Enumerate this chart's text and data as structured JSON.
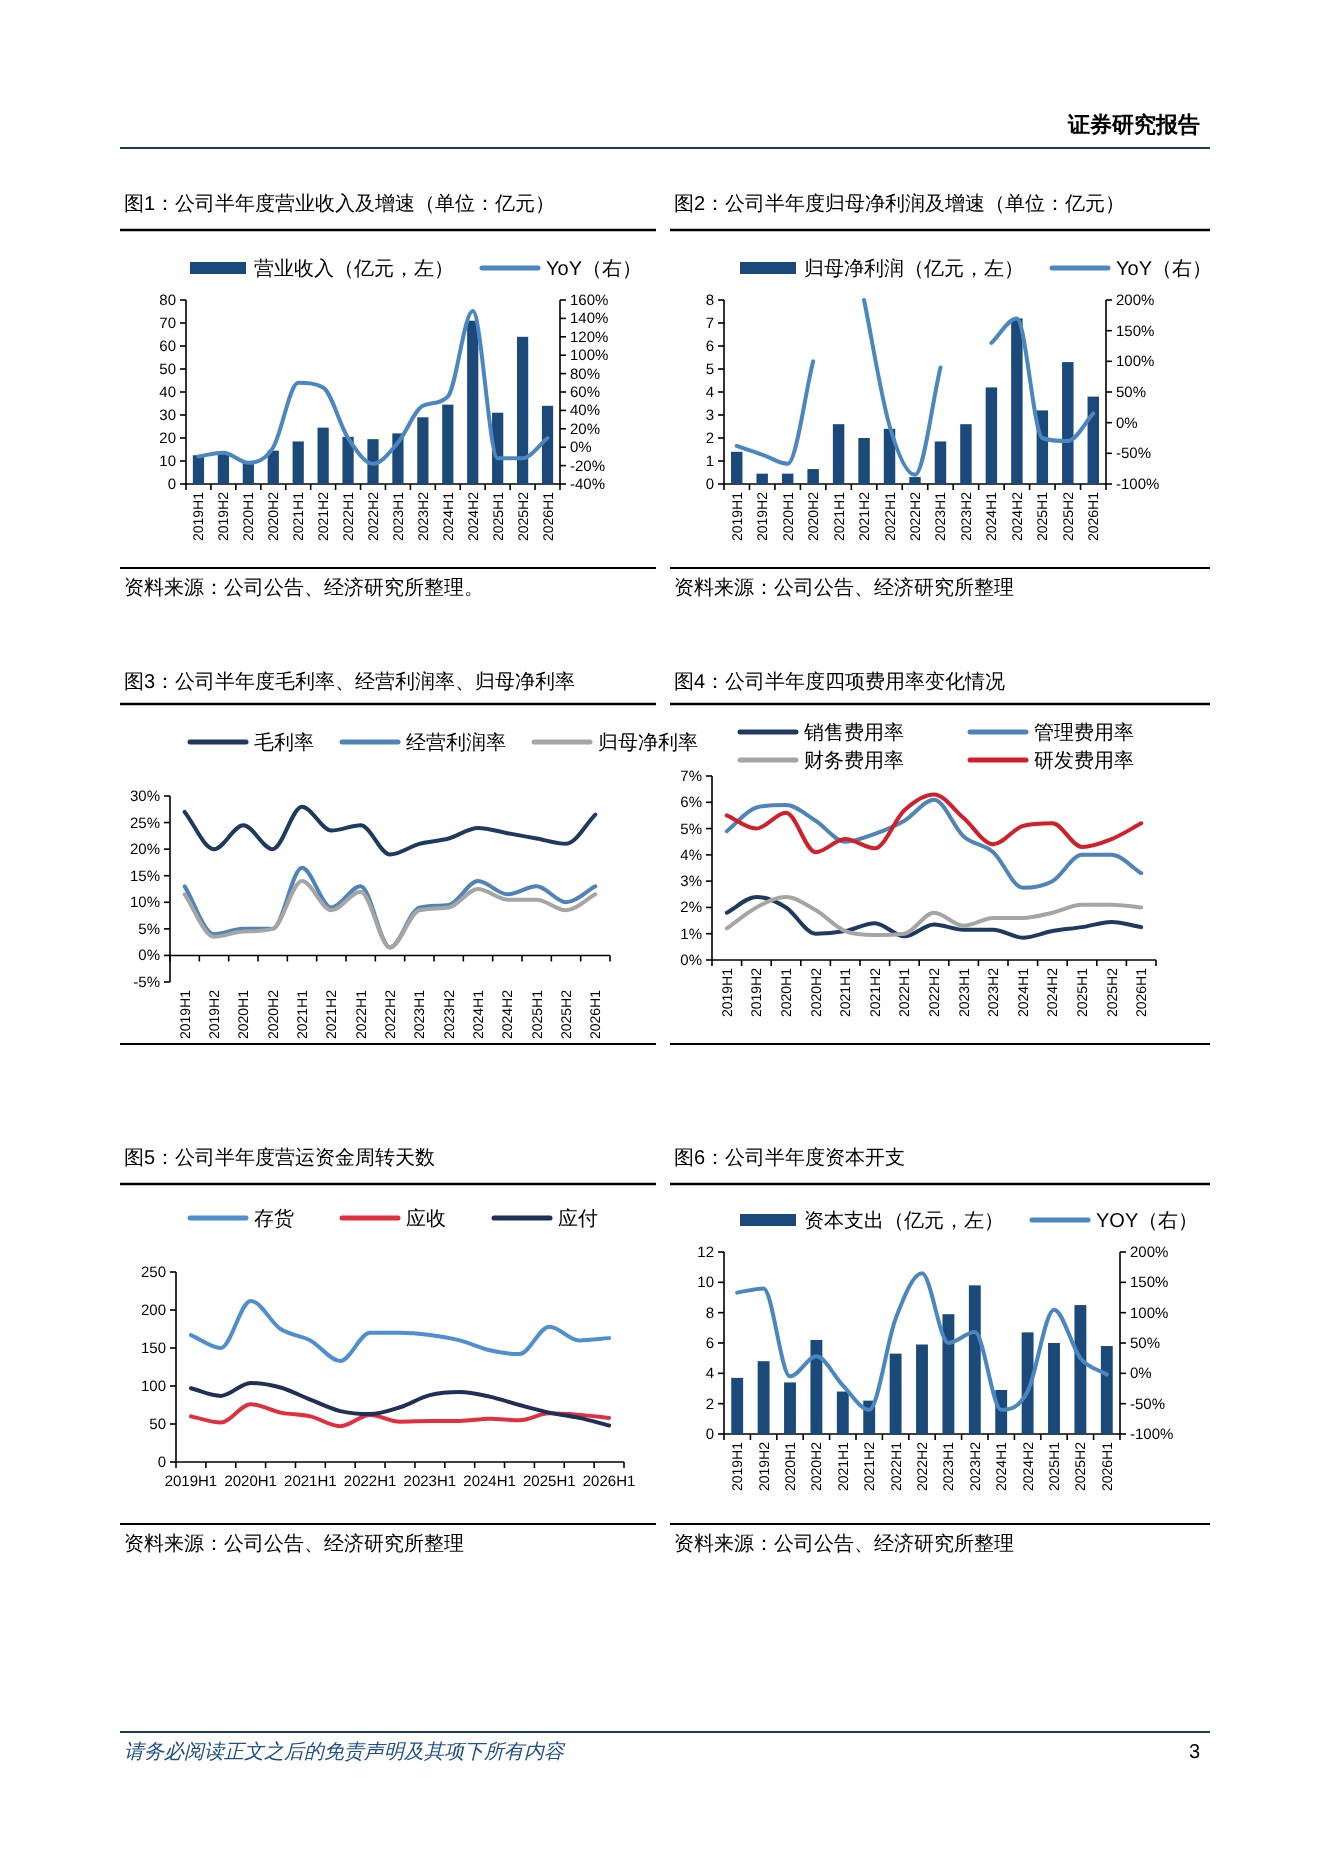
{
  "chart_data": [
    {
      "type": "other",
      "annotations": [
        "证券研究报告"
      ]
    },
    {
      "type": "bar",
      "title": "图1：公司半年度营业收入及增速（单位：亿元）",
      "legend": "top",
      "categories": [
        "2019H1",
        "2019H2",
        "2020H1",
        "2020H2",
        "2021H1",
        "2021H2",
        "2022H1",
        "2022H2",
        "2023H1",
        "2023H2",
        "2024H1",
        "2024H2",
        "2025H1",
        "2025H2",
        "2026H1"
      ],
      "series": [
        {
          "name": "营业收入（亿元，左）",
          "color": "#1b4a7a",
          "values": [
            12.5,
            13,
            10,
            14.5,
            18.5,
            24.5,
            20.5,
            19.5,
            22,
            29,
            34.5,
            71,
            31,
            64,
            34
          ]
        },
        {
          "name": "YoY（右）",
          "type": "line",
          "axis": "y2",
          "color": "#4a86c0",
          "values": [
            -10,
            -6,
            -17,
            0,
            70,
            65,
            10,
            -18,
            5,
            45,
            55,
            148,
            -12,
            -12,
            10
          ]
        }
      ],
      "ylim": [
        0,
        80
      ],
      "yticks": [
        0,
        10,
        20,
        30,
        40,
        50,
        60,
        70,
        80
      ],
      "y2lim": [
        -40,
        160
      ],
      "y2ticks": [
        {
          "value": -40,
          "label": "-40%"
        },
        {
          "value": -20,
          "label": "-20%"
        },
        {
          "value": 0,
          "label": "0%"
        },
        {
          "value": 20,
          "label": "20%"
        },
        {
          "value": 40,
          "label": "40%"
        },
        {
          "value": 60,
          "label": "60%"
        },
        {
          "value": 80,
          "label": "80%"
        },
        {
          "value": 100,
          "label": "100%"
        },
        {
          "value": 120,
          "label": "120%"
        },
        {
          "value": 140,
          "label": "140%"
        },
        {
          "value": 160,
          "label": "160%"
        }
      ],
      "annotations": [
        "资料来源：公司公告、经济研究所整理。"
      ]
    },
    {
      "type": "bar",
      "title": "图2：公司半年度归母净利润及增速（单位：亿元）",
      "legend": "top",
      "categories": [
        "2019H1",
        "2019H2",
        "2020H1",
        "2020H2",
        "2021H1",
        "2021H2",
        "2022H1",
        "2022H2",
        "2023H1",
        "2023H2",
        "2024H1",
        "2024H2",
        "2025H1",
        "2025H2",
        "2026H1"
      ],
      "series": [
        {
          "name": "归母净利润（亿元，左）",
          "color": "#1b4a7a",
          "values": [
            1.4,
            0.45,
            0.45,
            0.65,
            2.6,
            2.0,
            2.4,
            0.3,
            1.85,
            2.6,
            4.2,
            7.2,
            3.2,
            5.3,
            3.8
          ]
        },
        {
          "name": "YoY（右）",
          "type": "line",
          "axis": "y2",
          "color": "#4a86c0",
          "values": [
            -38,
            -52,
            -67,
            100,
            null,
            200,
            -5,
            -85,
            90,
            null,
            130,
            170,
            -25,
            -30,
            15
          ]
        }
      ],
      "ylim": [
        0,
        8
      ],
      "yticks": [
        0,
        1,
        2,
        3,
        4,
        5,
        6,
        7,
        8
      ],
      "y2lim": [
        -100,
        200
      ],
      "y2ticks": [
        {
          "value": -100,
          "label": "-100%"
        },
        {
          "value": -50,
          "label": "-50%"
        },
        {
          "value": 0,
          "label": "0%"
        },
        {
          "value": 50,
          "label": "50%"
        },
        {
          "value": 100,
          "label": "100%"
        },
        {
          "value": 150,
          "label": "150%"
        },
        {
          "value": 200,
          "label": "200%"
        }
      ],
      "annotations": [
        "资料来源：公司公告、经济研究所整理"
      ]
    },
    {
      "type": "line",
      "title": "图3：公司半年度毛利率、经营利润率、归母净利率",
      "legend": "top",
      "categories": [
        "2019H1",
        "2019H2",
        "2020H1",
        "2020H2",
        "2021H1",
        "2021H2",
        "2022H1",
        "2022H2",
        "2023H1",
        "2023H2",
        "2024H1",
        "2024H2",
        "2025H1",
        "2025H2",
        "2026H1"
      ],
      "series": [
        {
          "name": "毛利率",
          "color": "#1f3a5f",
          "values": [
            27,
            20,
            24.5,
            20,
            28,
            23.5,
            24.5,
            19,
            21,
            22,
            24,
            23,
            22,
            21,
            26.5
          ]
        },
        {
          "name": "经营利润率",
          "color": "#4f84b8",
          "values": [
            13,
            4,
            5,
            5,
            16.5,
            9,
            13,
            1.5,
            9,
            9.5,
            14,
            11.5,
            13,
            10,
            13
          ]
        },
        {
          "name": "归母净利率",
          "color": "#a5a5a5",
          "values": [
            11.5,
            3.5,
            4.5,
            5,
            14,
            8.5,
            12,
            1.5,
            8.5,
            9,
            12.5,
            10.5,
            10.5,
            8.5,
            11.5
          ]
        }
      ],
      "ylim": [
        -5,
        30
      ],
      "yticks": [
        {
          "value": -5,
          "label": "-5%"
        },
        {
          "value": 0,
          "label": "0%"
        },
        {
          "value": 5,
          "label": "5%"
        },
        {
          "value": 10,
          "label": "10%"
        },
        {
          "value": 15,
          "label": "15%"
        },
        {
          "value": 20,
          "label": "20%"
        },
        {
          "value": 25,
          "label": "25%"
        },
        {
          "value": 30,
          "label": "30%"
        }
      ]
    },
    {
      "type": "line",
      "title": "图4：公司半年度四项费用率变化情况",
      "legend": "top",
      "categories": [
        "2019H1",
        "2019H2",
        "2020H1",
        "2020H2",
        "2021H1",
        "2021H2",
        "2022H1",
        "2022H2",
        "2023H1",
        "2023H2",
        "2024H1",
        "2024H2",
        "2025H1",
        "2025H2",
        "2026H1"
      ],
      "series": [
        {
          "name": "销售费用率",
          "color": "#1f3a5f",
          "values": [
            1.8,
            2.4,
            2.0,
            1.0,
            1.1,
            1.4,
            0.9,
            1.35,
            1.15,
            1.15,
            0.85,
            1.1,
            1.25,
            1.45,
            1.25
          ]
        },
        {
          "name": "管理费用率",
          "color": "#4f84b8",
          "values": [
            4.9,
            5.8,
            5.9,
            5.3,
            4.5,
            4.8,
            5.3,
            6.1,
            4.7,
            4.1,
            2.75,
            3.0,
            4.0,
            4.0,
            3.3
          ]
        },
        {
          "name": "财务费用率",
          "color": "#a5a5a5",
          "values": [
            1.2,
            2.0,
            2.4,
            1.9,
            1.1,
            0.95,
            1.0,
            1.8,
            1.3,
            1.6,
            1.6,
            1.8,
            2.1,
            2.1,
            2.0
          ]
        },
        {
          "name": "研发费用率",
          "color": "#d0202a",
          "values": [
            5.5,
            5.0,
            5.6,
            4.1,
            4.6,
            4.25,
            5.7,
            6.3,
            5.4,
            4.4,
            5.1,
            5.2,
            4.3,
            4.6,
            5.2
          ]
        }
      ],
      "ylim": [
        0,
        7
      ],
      "yticks": [
        {
          "value": 0,
          "label": "0%"
        },
        {
          "value": 1,
          "label": "1%"
        },
        {
          "value": 2,
          "label": "2%"
        },
        {
          "value": 3,
          "label": "3%"
        },
        {
          "value": 4,
          "label": "4%"
        },
        {
          "value": 5,
          "label": "5%"
        },
        {
          "value": 6,
          "label": "6%"
        },
        {
          "value": 7,
          "label": "7%"
        }
      ]
    },
    {
      "type": "line",
      "title": "图5：公司半年度营运资金周转天数",
      "legend": "top",
      "categories": [
        "2019H1",
        null,
        "2020H1",
        null,
        "2021H1",
        null,
        "2022H1",
        null,
        "2023H1",
        null,
        "2024H1",
        null,
        "2025H1",
        null,
        "2026H1"
      ],
      "series": [
        {
          "name": "存货",
          "color": "#4f8fcf",
          "values": [
            167,
            150,
            212,
            175,
            160,
            133,
            170,
            170,
            167,
            160,
            147,
            142,
            178,
            160,
            163
          ]
        },
        {
          "name": "应收",
          "color": "#e03040",
          "values": [
            60,
            52,
            76,
            65,
            60,
            47,
            62,
            53,
            54,
            54,
            57,
            55,
            64,
            62,
            58
          ]
        },
        {
          "name": "应付",
          "color": "#1f2f55",
          "values": [
            97,
            87,
            104,
            98,
            82,
            67,
            63,
            72,
            88,
            92,
            86,
            75,
            65,
            58,
            48
          ]
        }
      ],
      "ylim": [
        0,
        250
      ],
      "yticks": [
        0,
        50,
        100,
        150,
        200,
        250
      ],
      "annotations": [
        "资料来源：公司公告、经济研究所整理"
      ]
    },
    {
      "type": "bar",
      "title": "图6：公司半年度资本开支",
      "legend": "top",
      "categories": [
        "2019H1",
        "2019H2",
        "2020H1",
        "2020H2",
        "2021H1",
        "2021H2",
        "2022H1",
        "2022H2",
        "2023H1",
        "2023H2",
        "2024H1",
        "2024H2",
        "2025H1",
        "2025H2",
        "2026H1"
      ],
      "series": [
        {
          "name": "资本支出（亿元，左）",
          "color": "#1b4a7a",
          "values": [
            3.7,
            4.8,
            3.4,
            6.2,
            2.8,
            2.2,
            5.3,
            5.9,
            7.9,
            9.8,
            2.9,
            6.7,
            6.0,
            8.5,
            5.8
          ]
        },
        {
          "name": "YOY（右）",
          "type": "line",
          "axis": "y2",
          "color": "#4a86c0",
          "values": [
            133,
            140,
            -5,
            28,
            -20,
            -60,
            90,
            165,
            50,
            68,
            -60,
            -30,
            105,
            25,
            -2
          ]
        }
      ],
      "ylim": [
        0,
        12
      ],
      "yticks": [
        0,
        2,
        4,
        6,
        8,
        10,
        12
      ],
      "y2lim": [
        -100,
        200
      ],
      "y2ticks": [
        {
          "value": -100,
          "label": "-100%"
        },
        {
          "value": -50,
          "label": "-50%"
        },
        {
          "value": 0,
          "label": "0%"
        },
        {
          "value": 50,
          "label": "50%"
        },
        {
          "value": 100,
          "label": "100%"
        },
        {
          "value": 150,
          "label": "150%"
        },
        {
          "value": 200,
          "label": "200%"
        }
      ],
      "annotations": [
        "资料来源：公司公告、经济研究所整理"
      ]
    },
    {
      "type": "other",
      "annotations": [
        "请务必阅读正文之后的免责声明及其项下所有内容",
        "3"
      ]
    }
  ]
}
